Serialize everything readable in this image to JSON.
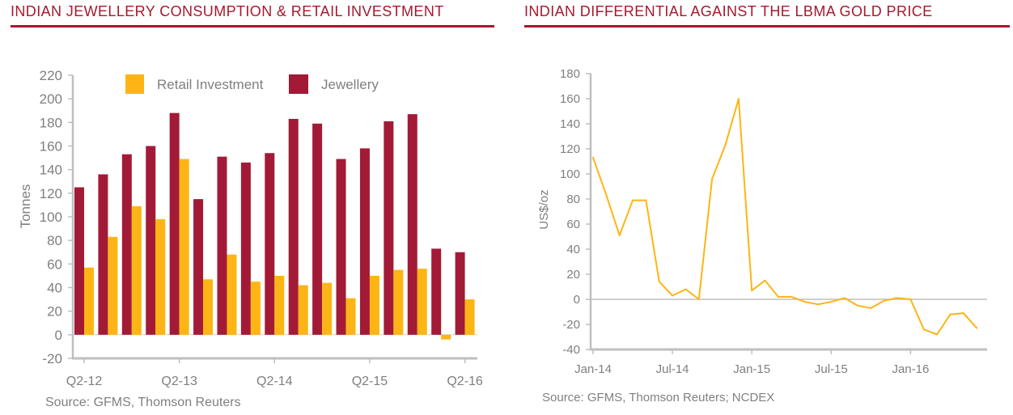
{
  "colors": {
    "title": "#a6192e",
    "axis": "#bfbfbf",
    "text": "#7f7f7f"
  },
  "chart_data": [
    {
      "type": "bar",
      "title": "INDIAN JEWELLERY CONSUMPTION & RETAIL INVESTMENT",
      "source": "Source: GFMS, Thomson Reuters",
      "xlabel": "",
      "ylabel": "Tonnes",
      "ylim": [
        -20,
        220
      ],
      "yticks": [
        -20,
        0,
        20,
        40,
        60,
        80,
        100,
        120,
        140,
        160,
        180,
        200,
        220
      ],
      "categories": [
        "Q2-12",
        "",
        "",
        "",
        "Q2-13",
        "",
        "",
        "",
        "Q2-14",
        "",
        "",
        "",
        "Q2-15",
        "",
        "",
        "",
        "Q2-16"
      ],
      "series": [
        {
          "name": "Jewellery",
          "color": "#a31a37",
          "values": [
            125,
            136,
            153,
            160,
            188,
            115,
            151,
            146,
            154,
            183,
            179,
            149,
            158,
            181,
            187,
            73,
            70
          ]
        },
        {
          "name": "Retail Investment",
          "color": "#fdb515",
          "values": [
            57,
            83,
            109,
            98,
            149,
            47,
            68,
            45,
            50,
            42,
            44,
            31,
            50,
            55,
            56,
            -4,
            30
          ]
        }
      ],
      "legend": {
        "placement": "top"
      },
      "grid": false
    },
    {
      "type": "line",
      "title": "INDIAN DIFFERENTIAL AGAINST THE LBMA GOLD PRICE",
      "source": "Source: GFMS, Thomson Reuters; NCDEX",
      "xlabel": "",
      "ylabel": "US$/oz",
      "ylim": [
        -40,
        180
      ],
      "yticks": [
        -40,
        -20,
        0,
        20,
        40,
        60,
        80,
        100,
        120,
        140,
        160,
        180
      ],
      "x": [
        "Jan-14",
        "",
        "",
        "",
        "",
        "",
        "Jul-14",
        "",
        "",
        "",
        "",
        "",
        "Jan-15",
        "",
        "",
        "",
        "",
        "",
        "Jul-15",
        "",
        "",
        "",
        "",
        "",
        "Jan-16",
        "",
        "",
        "",
        "",
        ""
      ],
      "series": [
        {
          "color": "#fdb515",
          "values": [
            113,
            83,
            51,
            79,
            79,
            14,
            3,
            8,
            0,
            96,
            123,
            160,
            7,
            15,
            2,
            2,
            -2,
            -4,
            -2,
            1,
            -5,
            -7,
            -1,
            1,
            0,
            -24,
            -28,
            -12,
            -11,
            -23
          ]
        }
      ],
      "grid": false
    }
  ]
}
